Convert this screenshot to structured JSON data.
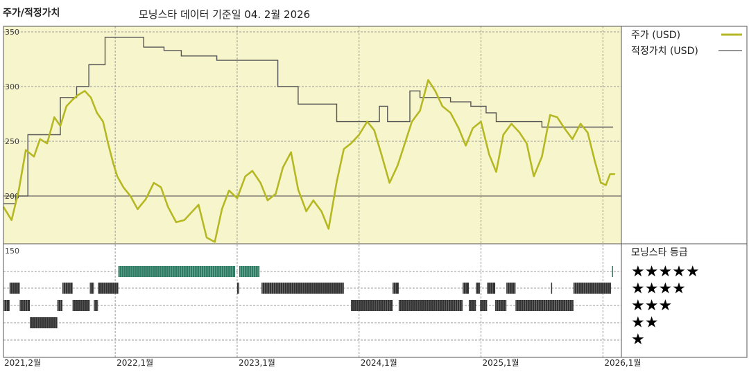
{
  "header": {
    "left_title": "주가/적정가치",
    "center_title": "모닝스타 데이터 기준일 04. 2월 2026"
  },
  "legend": {
    "price_label": "주가 (USD)",
    "fair_label": "적정가치 (USD)",
    "rating_label": "모닝스타 등급"
  },
  "colors": {
    "price": "#b5b823",
    "fair": "#555555",
    "plot_bg": "#f7f5cc",
    "five_star": "#2e7d64",
    "other_star": "#333333"
  },
  "chart_data": {
    "type": "line",
    "x_start": "2021-02",
    "x_end": "2026-02",
    "ylim": [
      150,
      350
    ],
    "yticks": [
      150,
      200,
      250,
      300,
      350
    ],
    "xticks": [
      "2021,2월",
      "2022,1월",
      "2023,1월",
      "2024,1월",
      "2025,1월",
      "2026,1월"
    ],
    "xtick_months": [
      0,
      11,
      23,
      35,
      47,
      59
    ],
    "grid": true,
    "legend_position": "right",
    "series": [
      {
        "name": "주가 (USD)",
        "x": [
          0,
          0.8,
          1.5,
          2.2,
          3,
          3.6,
          4.3,
          5,
          5.6,
          6.2,
          6.8,
          7.3,
          8,
          8.6,
          9.2,
          9.8,
          10.3,
          10.8,
          11.2,
          11.8,
          12.5,
          13.2,
          14,
          14.8,
          15.5,
          16.2,
          17,
          17.8,
          18.5,
          19.2,
          20,
          20.8,
          21.5,
          22.2,
          23,
          23.8,
          24.5,
          25.3,
          26,
          26.8,
          27.5,
          28.3,
          29,
          29.8,
          30.5,
          31.3,
          32,
          32.8,
          33.5,
          34.2,
          35,
          35.8,
          36.5,
          37.2,
          38,
          38.8,
          39.5,
          40.2,
          41,
          41.8,
          42.5,
          43.2,
          44,
          44.8,
          45.5,
          46.2,
          47,
          47.8,
          48.5,
          49.2,
          50,
          50.8,
          51.5,
          52.2,
          53,
          53.8,
          54.5,
          55.2,
          56,
          56.8,
          57.5,
          58.2,
          58.8,
          59.3,
          59.7,
          60.2
        ],
        "y": [
          190,
          178,
          205,
          242,
          236,
          252,
          248,
          272,
          264,
          282,
          288,
          292,
          296,
          290,
          276,
          268,
          248,
          230,
          218,
          208,
          200,
          188,
          197,
          212,
          208,
          190,
          176,
          178,
          185,
          192,
          162,
          158,
          188,
          205,
          198,
          218,
          223,
          212,
          196,
          202,
          226,
          240,
          206,
          186,
          196,
          186,
          170,
          213,
          243,
          248,
          256,
          268,
          260,
          238,
          212,
          228,
          248,
          268,
          278,
          306,
          296,
          282,
          276,
          262,
          246,
          262,
          268,
          238,
          222,
          256,
          266,
          258,
          248,
          218,
          236,
          274,
          272,
          262,
          252,
          266,
          258,
          232,
          212,
          210,
          220,
          220
        ]
      },
      {
        "name": "적정가치 (USD)",
        "x": [
          0,
          1.2,
          1.2,
          2.4,
          2.4,
          5.6,
          5.6,
          7.2,
          7.2,
          8.4,
          8.4,
          10,
          10,
          11.8,
          11.8,
          13.8,
          13.8,
          15.8,
          15.8,
          17.5,
          17.5,
          21,
          21,
          27,
          27,
          29,
          29,
          32.8,
          32.8,
          35,
          35,
          37,
          37,
          37.8,
          37.8,
          40,
          40,
          41,
          41,
          43,
          43,
          44,
          44,
          46,
          46,
          47.5,
          47.5,
          48.5,
          48.5,
          51.5,
          51.5,
          53,
          53,
          60
        ],
        "y": [
          193,
          193,
          200,
          200,
          256,
          256,
          290,
          290,
          300,
          300,
          320,
          320,
          345,
          345,
          345,
          345,
          336,
          336,
          333,
          333,
          328,
          328,
          324,
          324,
          300,
          300,
          284,
          284,
          268,
          268,
          268,
          268,
          282,
          282,
          268,
          268,
          296,
          296,
          290,
          290,
          290,
          290,
          286,
          286,
          282,
          282,
          276,
          276,
          268,
          268,
          268,
          268,
          263,
          263
        ]
      }
    ],
    "rating_rows": [
      "★★★★★",
      "★★★★",
      "★★★",
      "★★",
      "★"
    ],
    "rating_segments": [
      {
        "stars": 5,
        "from": 11.3,
        "to": 22.8
      },
      {
        "stars": 5,
        "from": 23.2,
        "to": 25.2
      },
      {
        "stars": 5,
        "from": 59.9,
        "to": 60
      },
      {
        "stars": 4,
        "from": 0.6,
        "to": 1.6
      },
      {
        "stars": 4,
        "from": 5.8,
        "to": 6.8
      },
      {
        "stars": 4,
        "from": 8.5,
        "to": 8.9
      },
      {
        "stars": 4,
        "from": 9.3,
        "to": 11.3
      },
      {
        "stars": 4,
        "from": 23.0,
        "to": 23.2
      },
      {
        "stars": 4,
        "from": 25.4,
        "to": 33.5
      },
      {
        "stars": 4,
        "from": 38.3,
        "to": 38.9
      },
      {
        "stars": 4,
        "from": 45.2,
        "to": 45.8
      },
      {
        "stars": 4,
        "from": 46.5,
        "to": 46.9
      },
      {
        "stars": 4,
        "from": 47.6,
        "to": 48.4
      },
      {
        "stars": 4,
        "from": 49.5,
        "to": 50.4
      },
      {
        "stars": 4,
        "from": 53.9,
        "to": 54.0
      },
      {
        "stars": 4,
        "from": 56.1,
        "to": 59.8
      },
      {
        "stars": 3,
        "from": 0,
        "to": 0.6
      },
      {
        "stars": 3,
        "from": 1.6,
        "to": 2.6
      },
      {
        "stars": 3,
        "from": 5.3,
        "to": 5.8
      },
      {
        "stars": 3,
        "from": 6.8,
        "to": 8.5
      },
      {
        "stars": 3,
        "from": 8.9,
        "to": 9.3
      },
      {
        "stars": 3,
        "from": 34.2,
        "to": 38.3
      },
      {
        "stars": 3,
        "from": 38.9,
        "to": 45.2
      },
      {
        "stars": 3,
        "from": 45.8,
        "to": 46.5
      },
      {
        "stars": 3,
        "from": 46.9,
        "to": 47.6
      },
      {
        "stars": 3,
        "from": 48.4,
        "to": 49.5
      },
      {
        "stars": 3,
        "from": 50.4,
        "to": 56.1
      },
      {
        "stars": 2,
        "from": 2.6,
        "to": 5.3
      }
    ]
  }
}
